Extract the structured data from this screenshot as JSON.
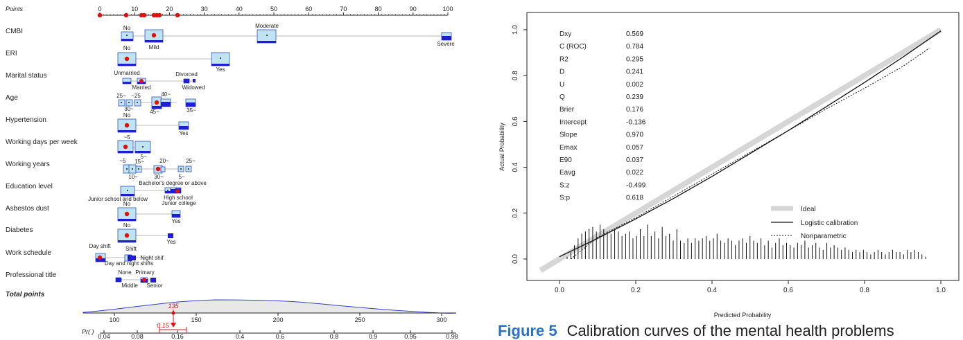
{
  "nomogram": {
    "points_label": "Points",
    "points_ticks": [
      "0",
      "10",
      "20",
      "30",
      "40",
      "50",
      "60",
      "70",
      "80",
      "90",
      "100"
    ],
    "total_points_label": "Total points",
    "total_ticks": [
      "100",
      "150",
      "200",
      "250",
      "300"
    ],
    "pr_label": "Pr( )",
    "pr_ticks": [
      "0.04",
      "0.08",
      "0.16",
      "0.4",
      "0.6",
      "0.8",
      "0.9",
      "0.95",
      "0.98"
    ],
    "red_total_value": "135",
    "red_pr_value": "0.15",
    "colors": {
      "box_fill": "#bfe4ef",
      "box_border": "#2f4fc8",
      "bar": "#1f1fd0",
      "dot": "#e01010",
      "density_line": "#3340c8"
    },
    "variables": [
      {
        "name": "CMBI",
        "levels": [
          "No",
          "Mild",
          "Moderate",
          "Severe"
        ]
      },
      {
        "name": "ERI",
        "levels": [
          "No",
          "Yes"
        ]
      },
      {
        "name": "Marital status",
        "levels": [
          "Unmarried",
          "Married",
          "Divorced",
          "Widowed"
        ]
      },
      {
        "name": "Age",
        "levels": [
          "25~",
          "~25",
          "30~",
          "40~",
          "45~",
          "35~"
        ]
      },
      {
        "name": "Hypertension",
        "levels": [
          "No",
          "Yes"
        ]
      },
      {
        "name": "Working days per week",
        "levels": [
          "~5",
          "5~"
        ]
      },
      {
        "name": "Working years",
        "levels": [
          "~5",
          "15~",
          "20~",
          "25~",
          "10~",
          "30~",
          "Bachelor's degree or above",
          "5~"
        ]
      },
      {
        "name": "Education level",
        "levels": [
          "Junior school and below",
          "High school",
          "Junior college"
        ]
      },
      {
        "name": "Asbestos dust",
        "levels": [
          "No",
          "Yes"
        ]
      },
      {
        "name": "Diabetes",
        "levels": [
          "No",
          "Yes"
        ]
      },
      {
        "name": "Work schedule",
        "levels": [
          "Day shift",
          "Shift",
          "Night shif",
          "Day and night shifts"
        ]
      },
      {
        "name": "Professional title",
        "levels": [
          "None",
          "Primary",
          "Middle",
          "Senior"
        ]
      }
    ]
  },
  "calibration": {
    "xlabel": "Predicted Probability",
    "ylabel": "Actual Probability",
    "stats": [
      [
        "Dxy",
        "0.569"
      ],
      [
        "C (ROC)",
        "0.784"
      ],
      [
        "R2",
        "0.295"
      ],
      [
        "D",
        "0.241"
      ],
      [
        "U",
        "0.002"
      ],
      [
        "Q",
        "0.239"
      ],
      [
        "Brier",
        "0.176"
      ],
      [
        "Intercept",
        "-0.136"
      ],
      [
        "Slope",
        "0.970"
      ],
      [
        "Emax",
        "0.057"
      ],
      [
        "E90",
        "0.037"
      ],
      [
        "Eavg",
        "0.022"
      ],
      [
        "S:z",
        "-0.499"
      ],
      [
        "S:p",
        "0.618"
      ]
    ],
    "legend": [
      "Ideal",
      "Logistic calibration",
      "Nonparametric"
    ]
  },
  "chart_data": {
    "type": "line",
    "xlim": [
      0,
      1
    ],
    "ylim": [
      0,
      1
    ],
    "x_ticks": [
      "0.0",
      "0.2",
      "0.4",
      "0.6",
      "0.8",
      "1.0"
    ],
    "y_ticks": [
      "0.0",
      "0.2",
      "0.4",
      "0.6",
      "0.8",
      "1.0"
    ],
    "series": [
      {
        "name": "Ideal",
        "x": [
          -0.05,
          1.0
        ],
        "y": [
          -0.05,
          1.0
        ]
      },
      {
        "name": "Logistic calibration",
        "x": [
          0.0,
          0.1,
          0.2,
          0.3,
          0.4,
          0.5,
          0.6,
          0.7,
          0.8,
          0.9,
          1.0
        ],
        "y": [
          0.01,
          0.09,
          0.175,
          0.265,
          0.36,
          0.46,
          0.56,
          0.665,
          0.77,
          0.88,
          0.995
        ]
      },
      {
        "name": "Nonparametric",
        "x": [
          0.03,
          0.1,
          0.2,
          0.3,
          0.4,
          0.5,
          0.6,
          0.7,
          0.8,
          0.9,
          0.97
        ],
        "y": [
          0.0,
          0.095,
          0.18,
          0.275,
          0.37,
          0.465,
          0.56,
          0.655,
          0.745,
          0.84,
          0.92
        ]
      }
    ],
    "rug_heights": [
      0.01,
      0.03,
      0.06,
      0.09,
      0.11,
      0.12,
      0.13,
      0.14,
      0.12,
      0.15,
      0.13,
      0.12,
      0.11,
      0.13,
      0.12,
      0.1,
      0.11,
      0.12,
      0.09,
      0.1,
      0.13,
      0.1,
      0.15,
      0.1,
      0.12,
      0.09,
      0.14,
      0.1,
      0.11,
      0.08,
      0.13,
      0.08,
      0.07,
      0.09,
      0.07,
      0.09,
      0.08,
      0.09,
      0.1,
      0.08,
      0.09,
      0.11,
      0.08,
      0.07,
      0.09,
      0.08,
      0.06,
      0.08,
      0.09,
      0.07,
      0.1,
      0.08,
      0.07,
      0.09,
      0.06,
      0.08,
      0.05,
      0.07,
      0.09,
      0.06,
      0.07,
      0.06,
      0.05,
      0.07,
      0.06,
      0.08,
      0.05,
      0.06,
      0.07,
      0.05,
      0.04,
      0.07,
      0.05,
      0.06,
      0.05,
      0.04,
      0.05,
      0.04,
      0.03,
      0.04,
      0.03,
      0.04,
      0.03,
      0.02,
      0.03,
      0.04,
      0.03,
      0.02,
      0.03,
      0.04,
      0.03,
      0.03,
      0.02,
      0.04,
      0.03,
      0.04,
      0.03,
      0.02,
      0.01
    ]
  },
  "caption": {
    "figure_label": "Figure 5",
    "text": "Calibration curves of the mental health problems"
  }
}
